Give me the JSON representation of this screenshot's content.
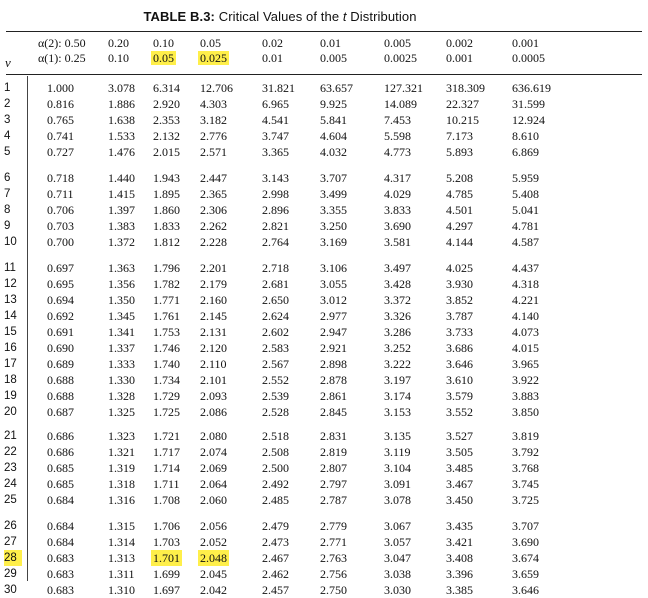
{
  "title": {
    "prefix": "TABLE B.3: ",
    "text": "Critical Values of the ",
    "t": "t",
    "suffix": " Distribution"
  },
  "header": {
    "nu": "ν",
    "alpha_two_label": "α(2): 0.50",
    "alpha_one_label": "α(1): 0.25",
    "columns": [
      {
        "two": "0.20",
        "one": "0.10"
      },
      {
        "two": "0.10",
        "one": "0.05"
      },
      {
        "two": "0.05",
        "one": "0.025"
      },
      {
        "two": "0.02",
        "one": "0.01"
      },
      {
        "two": "0.01",
        "one": "0.005"
      },
      {
        "two": "0.005",
        "one": "0.0025"
      },
      {
        "two": "0.002",
        "one": "0.001"
      },
      {
        "two": "0.001",
        "one": "0.0005"
      }
    ],
    "highlight_color": "#ffef4a"
  },
  "groups": [
    [
      {
        "df": "1",
        "v": [
          "1.000",
          "3.078",
          "6.314",
          "12.706",
          "31.821",
          "63.657",
          "127.321",
          "318.309",
          "636.619"
        ]
      },
      {
        "df": "2",
        "v": [
          "0.816",
          "1.886",
          "2.920",
          "4.303",
          "6.965",
          "9.925",
          "14.089",
          "22.327",
          "31.599"
        ]
      },
      {
        "df": "3",
        "v": [
          "0.765",
          "1.638",
          "2.353",
          "3.182",
          "4.541",
          "5.841",
          "7.453",
          "10.215",
          "12.924"
        ]
      },
      {
        "df": "4",
        "v": [
          "0.741",
          "1.533",
          "2.132",
          "2.776",
          "3.747",
          "4.604",
          "5.598",
          "7.173",
          "8.610"
        ]
      },
      {
        "df": "5",
        "v": [
          "0.727",
          "1.476",
          "2.015",
          "2.571",
          "3.365",
          "4.032",
          "4.773",
          "5.893",
          "6.869"
        ]
      }
    ],
    [
      {
        "df": "6",
        "v": [
          "0.718",
          "1.440",
          "1.943",
          "2.447",
          "3.143",
          "3.707",
          "4.317",
          "5.208",
          "5.959"
        ]
      },
      {
        "df": "7",
        "v": [
          "0.711",
          "1.415",
          "1.895",
          "2.365",
          "2.998",
          "3.499",
          "4.029",
          "4.785",
          "5.408"
        ]
      },
      {
        "df": "8",
        "v": [
          "0.706",
          "1.397",
          "1.860",
          "2.306",
          "2.896",
          "3.355",
          "3.833",
          "4.501",
          "5.041"
        ]
      },
      {
        "df": "9",
        "v": [
          "0.703",
          "1.383",
          "1.833",
          "2.262",
          "2.821",
          "3.250",
          "3.690",
          "4.297",
          "4.781"
        ]
      },
      {
        "df": "10",
        "v": [
          "0.700",
          "1.372",
          "1.812",
          "2.228",
          "2.764",
          "3.169",
          "3.581",
          "4.144",
          "4.587"
        ]
      }
    ],
    [
      {
        "df": "11",
        "v": [
          "0.697",
          "1.363",
          "1.796",
          "2.201",
          "2.718",
          "3.106",
          "3.497",
          "4.025",
          "4.437"
        ]
      },
      {
        "df": "12",
        "v": [
          "0.695",
          "1.356",
          "1.782",
          "2.179",
          "2.681",
          "3.055",
          "3.428",
          "3.930",
          "4.318"
        ]
      },
      {
        "df": "13",
        "v": [
          "0.694",
          "1.350",
          "1.771",
          "2.160",
          "2.650",
          "3.012",
          "3.372",
          "3.852",
          "4.221"
        ]
      },
      {
        "df": "14",
        "v": [
          "0.692",
          "1.345",
          "1.761",
          "2.145",
          "2.624",
          "2.977",
          "3.326",
          "3.787",
          "4.140"
        ]
      },
      {
        "df": "15",
        "v": [
          "0.691",
          "1.341",
          "1.753",
          "2.131",
          "2.602",
          "2.947",
          "3.286",
          "3.733",
          "4.073"
        ]
      },
      {
        "df": "16",
        "v": [
          "0.690",
          "1.337",
          "1.746",
          "2.120",
          "2.583",
          "2.921",
          "3.252",
          "3.686",
          "4.015"
        ]
      },
      {
        "df": "17",
        "v": [
          "0.689",
          "1.333",
          "1.740",
          "2.110",
          "2.567",
          "2.898",
          "3.222",
          "3.646",
          "3.965"
        ]
      },
      {
        "df": "18",
        "v": [
          "0.688",
          "1.330",
          "1.734",
          "2.101",
          "2.552",
          "2.878",
          "3.197",
          "3.610",
          "3.922"
        ]
      },
      {
        "df": "19",
        "v": [
          "0.688",
          "1.328",
          "1.729",
          "2.093",
          "2.539",
          "2.861",
          "3.174",
          "3.579",
          "3.883"
        ]
      },
      {
        "df": "20",
        "v": [
          "0.687",
          "1.325",
          "1.725",
          "2.086",
          "2.528",
          "2.845",
          "3.153",
          "3.552",
          "3.850"
        ]
      }
    ],
    [
      {
        "df": "21",
        "v": [
          "0.686",
          "1.323",
          "1.721",
          "2.080",
          "2.518",
          "2.831",
          "3.135",
          "3.527",
          "3.819"
        ]
      },
      {
        "df": "22",
        "v": [
          "0.686",
          "1.321",
          "1.717",
          "2.074",
          "2.508",
          "2.819",
          "3.119",
          "3.505",
          "3.792"
        ]
      },
      {
        "df": "23",
        "v": [
          "0.685",
          "1.319",
          "1.714",
          "2.069",
          "2.500",
          "2.807",
          "3.104",
          "3.485",
          "3.768"
        ]
      },
      {
        "df": "24",
        "v": [
          "0.685",
          "1.318",
          "1.711",
          "2.064",
          "2.492",
          "2.797",
          "3.091",
          "3.467",
          "3.745"
        ]
      },
      {
        "df": "25",
        "v": [
          "0.684",
          "1.316",
          "1.708",
          "2.060",
          "2.485",
          "2.787",
          "3.078",
          "3.450",
          "3.725"
        ]
      }
    ],
    [
      {
        "df": "26",
        "v": [
          "0.684",
          "1.315",
          "1.706",
          "2.056",
          "2.479",
          "2.779",
          "3.067",
          "3.435",
          "3.707"
        ]
      },
      {
        "df": "27",
        "v": [
          "0.684",
          "1.314",
          "1.703",
          "2.052",
          "2.473",
          "2.771",
          "3.057",
          "3.421",
          "3.690"
        ]
      },
      {
        "df": "28",
        "v": [
          "0.683",
          "1.313",
          "1.701",
          "2.048",
          "2.467",
          "2.763",
          "3.047",
          "3.408",
          "3.674"
        ],
        "highlight": true
      },
      {
        "df": "29",
        "v": [
          "0.683",
          "1.311",
          "1.699",
          "2.045",
          "2.462",
          "2.756",
          "3.038",
          "3.396",
          "3.659"
        ]
      },
      {
        "df": "30",
        "v": [
          "0.683",
          "1.310",
          "1.697",
          "2.042",
          "2.457",
          "2.750",
          "3.030",
          "3.385",
          "3.646"
        ]
      }
    ]
  ]
}
